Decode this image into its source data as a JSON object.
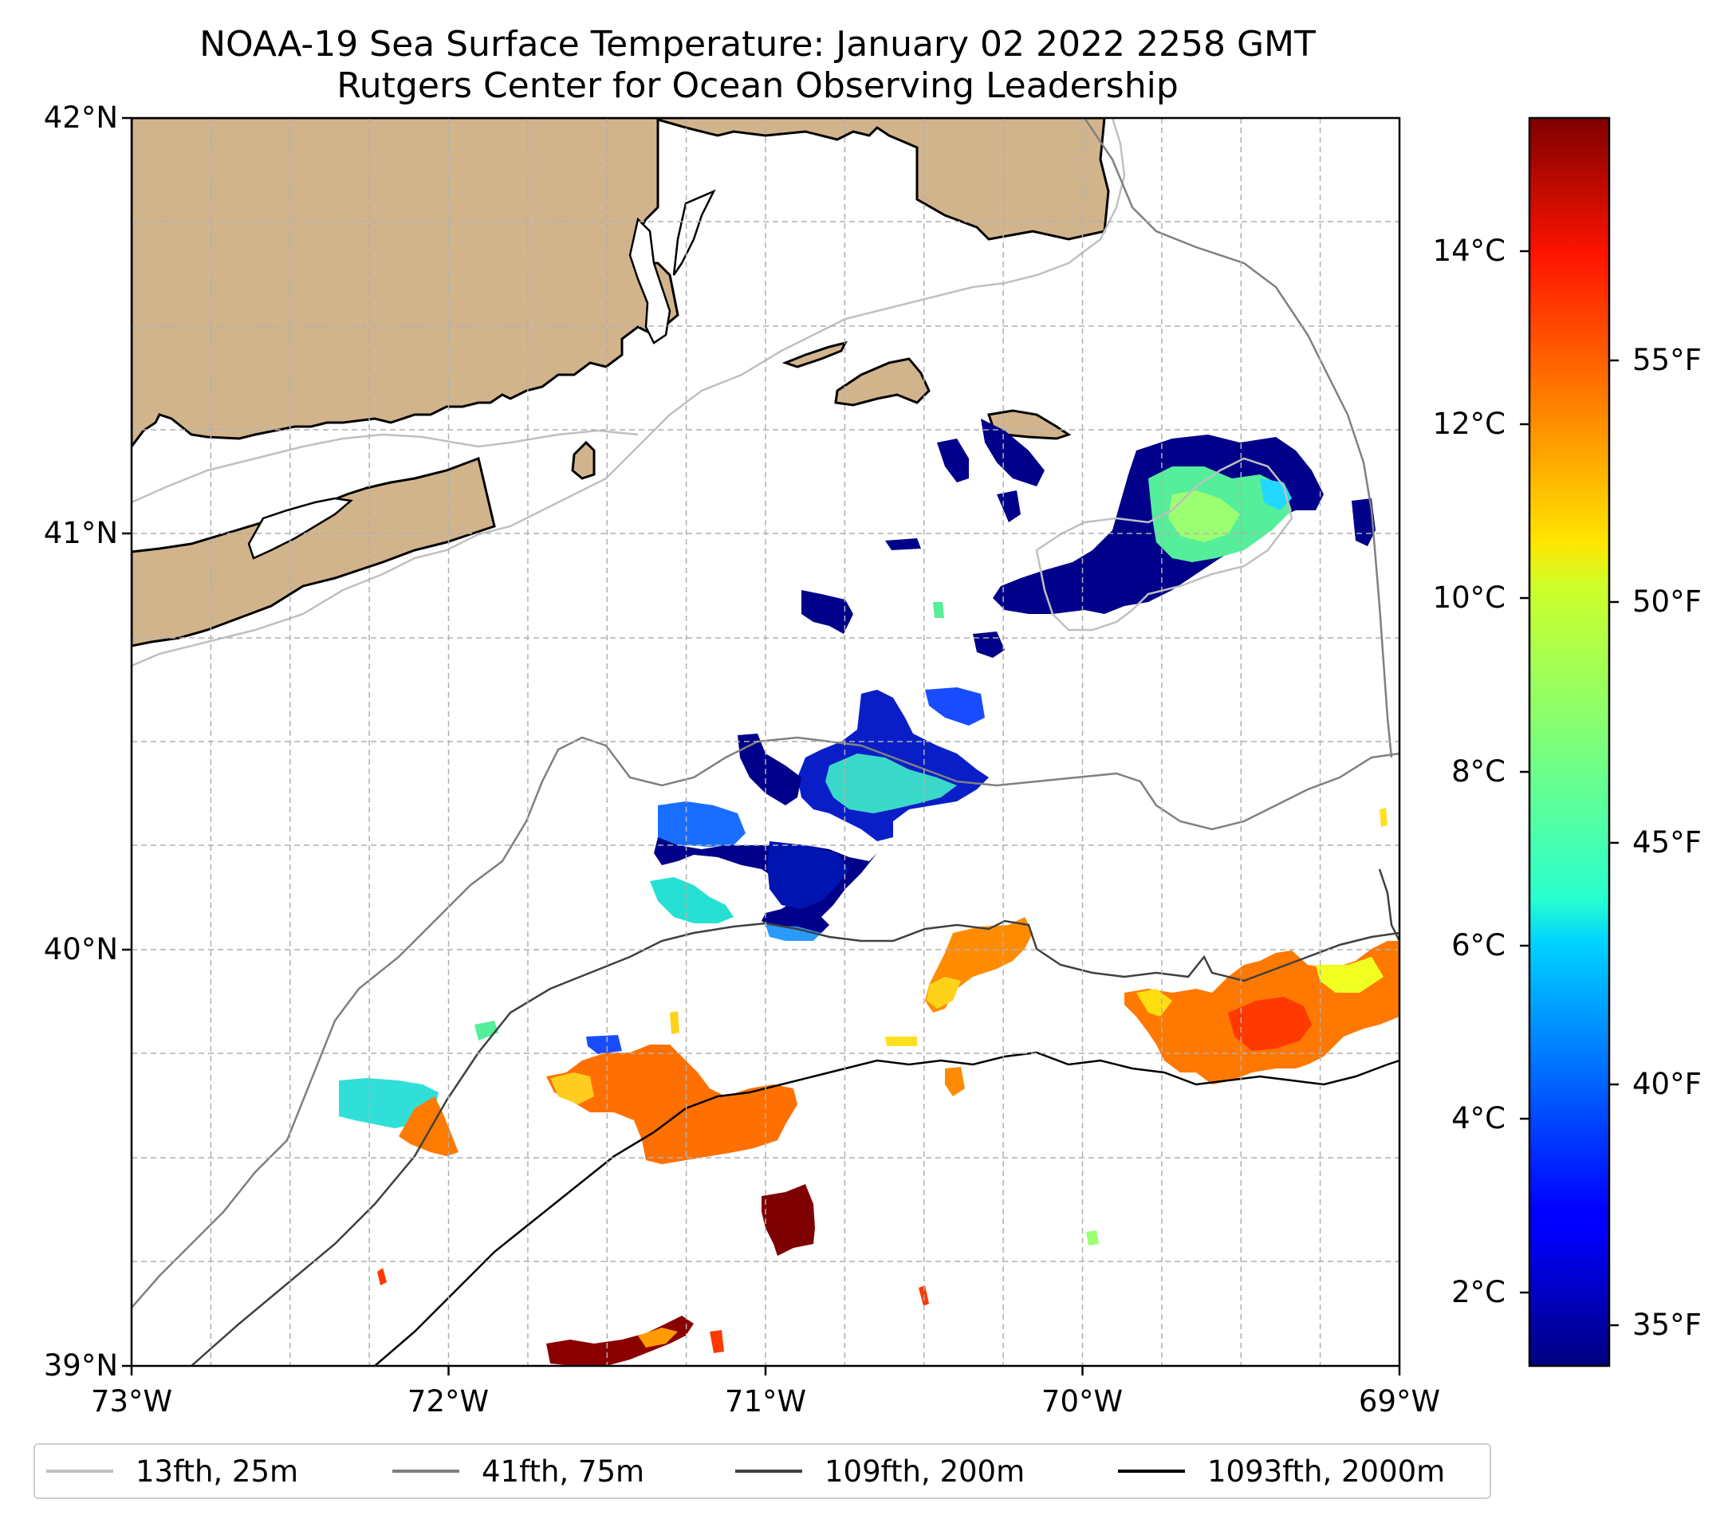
{
  "title": {
    "line1": "NOAA-19 Sea Surface Temperature: January 02 2022 2258 GMT",
    "line2": "Rutgers Center for Ocean Observing Leadership"
  },
  "axes": {
    "lat_labels": [
      "42°N",
      "41°N",
      "40°N",
      "39°N"
    ],
    "lon_labels": [
      "73°W",
      "72°W",
      "71°W",
      "70°W",
      "69°W"
    ],
    "lat_range": [
      39,
      42
    ],
    "lon_range": [
      -73,
      -69
    ]
  },
  "colorbar": {
    "celsius_labels": [
      "14°C",
      "12°C",
      "10°C",
      "8°C",
      "6°C",
      "4°C",
      "2°C"
    ],
    "fahrenheit_labels": [
      "55°F",
      "50°F",
      "45°F",
      "40°F",
      "35°F"
    ],
    "colormap": "jet",
    "range_c": [
      1.2,
      15.5
    ]
  },
  "legend": [
    {
      "label": "13fth, 25m",
      "color": "#c0c0c0"
    },
    {
      "label": "41fth, 75m",
      "color": "#808080"
    },
    {
      "label": "109fth, 200m",
      "color": "#404040"
    },
    {
      "label": "1093fth, 2000m",
      "color": "#000000"
    }
  ],
  "colors": {
    "land": "#d2b48c",
    "grid": "#b0b0b0"
  }
}
